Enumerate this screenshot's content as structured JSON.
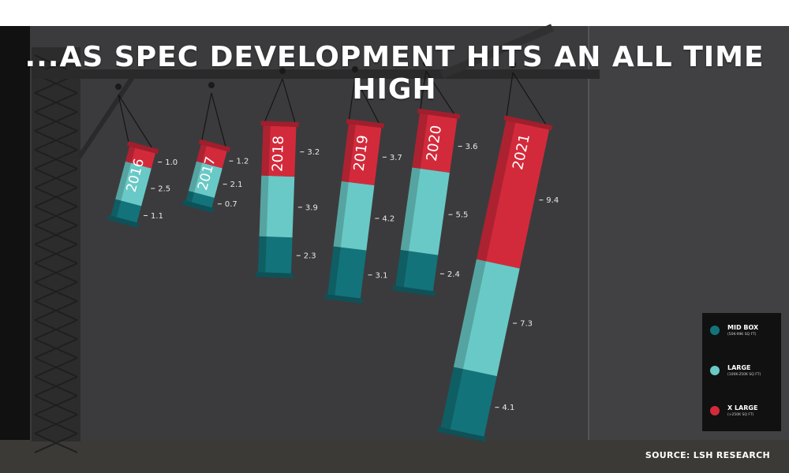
{
  "title": "...AS SPEC DEVELOPMENT HITS AN ALL TIME HIGH",
  "source": "SOURCE: LSH RESEARCH",
  "colors": {
    "mid_box": "#13737a",
    "large": "#69c9c6",
    "x_large": "#d32a3b"
  },
  "legend": [
    {
      "name": "MID BOX",
      "sub": "(50K-99K SQ FT)",
      "color": "#13737a"
    },
    {
      "name": "LARGE",
      "sub": "(100K-250K SQ FT)",
      "color": "#69c9c6"
    },
    {
      "name": "X LARGE",
      "sub": "(>250K SQ FT)",
      "color": "#d32a3b"
    }
  ],
  "chart_data": {
    "type": "bar",
    "stacked": true,
    "title": "...AS SPEC DEVELOPMENT HITS AN ALL TIME HIGH",
    "categories": [
      "2016",
      "2017",
      "2018",
      "2019",
      "2020",
      "2021"
    ],
    "series": [
      {
        "name": "MID BOX",
        "color": "#13737a",
        "values": [
          1.1,
          0.7,
          2.3,
          3.1,
          2.4,
          4.1
        ]
      },
      {
        "name": "LARGE",
        "color": "#69c9c6",
        "values": [
          2.5,
          2.1,
          3.9,
          4.2,
          5.5,
          7.3
        ]
      },
      {
        "name": "X LARGE",
        "color": "#d32a3b",
        "values": [
          1.0,
          1.2,
          3.2,
          3.7,
          3.6,
          9.4
        ]
      }
    ],
    "data_labels": [
      [
        "1.1",
        "0.7",
        "2.3",
        "3.1",
        "2.4",
        "4.1"
      ],
      [
        "2.5",
        "2.1",
        "3.9",
        "4.2",
        "5.5",
        "7.3"
      ],
      [
        "1.0",
        "1.2",
        "3.2",
        "3.7",
        "3.6",
        "9.4"
      ]
    ],
    "legend_position": "bottom-right",
    "grid": false
  }
}
